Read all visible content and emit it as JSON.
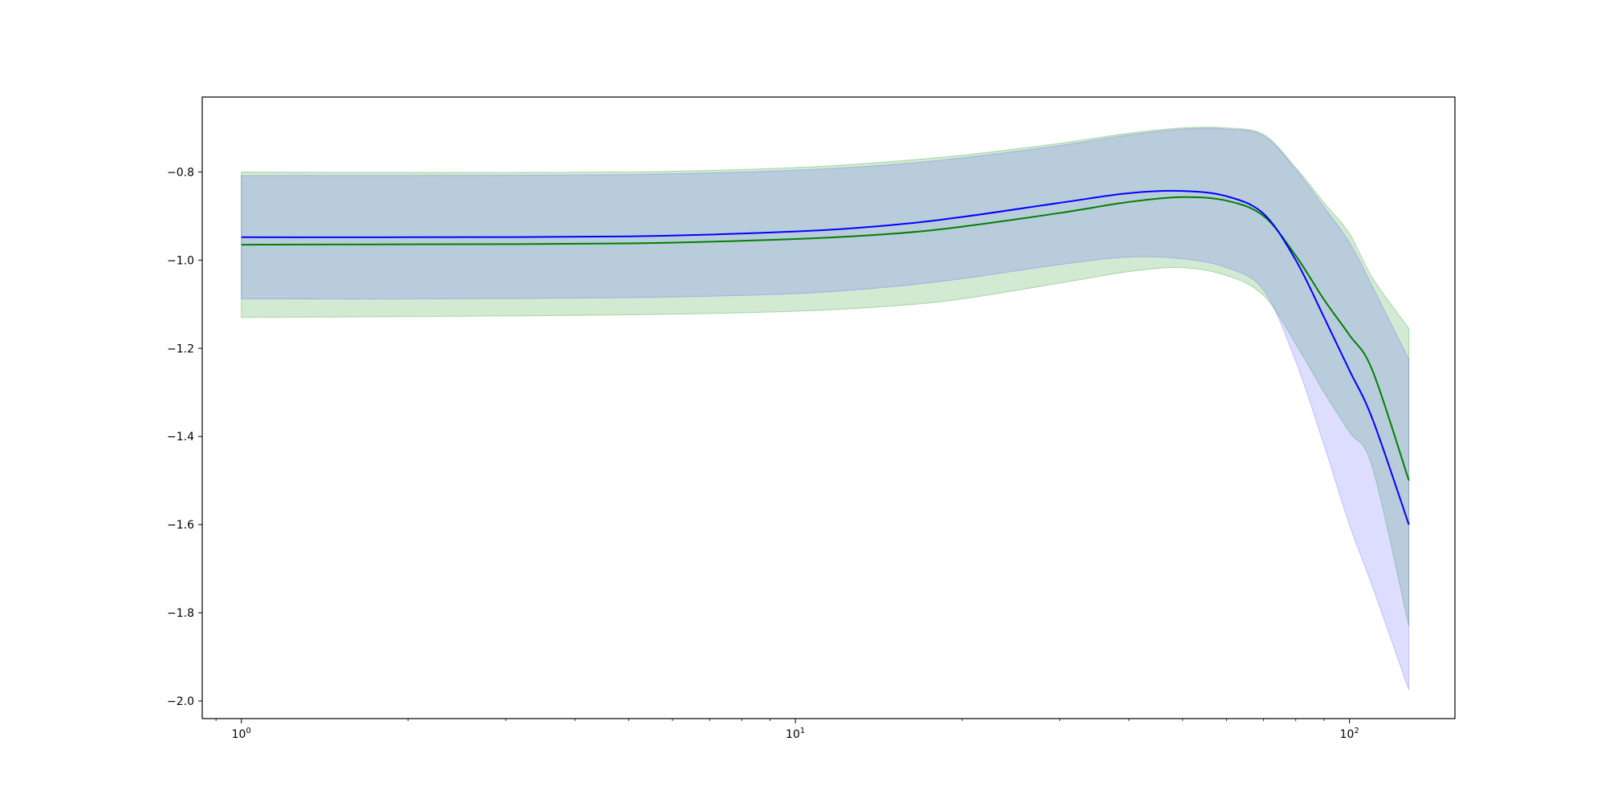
{
  "chart_data": {
    "type": "line",
    "title": "",
    "xlabel": "",
    "ylabel": "",
    "xscale": "log",
    "xlim": [
      0.85,
      155
    ],
    "ylim": [
      -2.04,
      -0.63
    ],
    "grid": false,
    "legend": "none",
    "x_ticks": [
      {
        "value": 1,
        "base": "10",
        "exp": "0"
      },
      {
        "value": 10,
        "base": "10",
        "exp": "1"
      },
      {
        "value": 100,
        "base": "10",
        "exp": "2"
      }
    ],
    "y_ticks": [
      {
        "value": -0.8,
        "label": "−0.8"
      },
      {
        "value": -1.0,
        "label": "−1.0"
      },
      {
        "value": -1.2,
        "label": "−1.2"
      },
      {
        "value": -1.4,
        "label": "−1.4"
      },
      {
        "value": -1.6,
        "label": "−1.6"
      },
      {
        "value": -1.8,
        "label": "−1.8"
      },
      {
        "value": -2.0,
        "label": "−2.0"
      }
    ],
    "x": [
      1,
      2,
      5,
      10,
      15,
      20,
      30,
      40,
      50,
      60,
      70,
      80,
      90,
      100,
      110,
      128
    ],
    "series": [
      {
        "color": "#008000",
        "band_color": "#2ca02c",
        "values": [
          -0.965,
          -0.964,
          -0.962,
          -0.952,
          -0.94,
          -0.924,
          -0.893,
          -0.868,
          -0.857,
          -0.865,
          -0.9,
          -0.99,
          -1.09,
          -1.17,
          -1.25,
          -1.5
        ],
        "upper": [
          -0.8,
          -0.801,
          -0.8,
          -0.79,
          -0.776,
          -0.762,
          -0.735,
          -0.712,
          -0.7,
          -0.7,
          -0.715,
          -0.79,
          -0.87,
          -0.94,
          -1.04,
          -1.155
        ],
        "lower": [
          -1.13,
          -1.128,
          -1.124,
          -1.116,
          -1.104,
          -1.088,
          -1.052,
          -1.026,
          -1.017,
          -1.035,
          -1.08,
          -1.19,
          -1.3,
          -1.39,
          -1.47,
          -1.83
        ]
      },
      {
        "color": "#0000ff",
        "band_color": "#6666ff",
        "values": [
          -0.948,
          -0.948,
          -0.946,
          -0.935,
          -0.92,
          -0.902,
          -0.87,
          -0.848,
          -0.843,
          -0.855,
          -0.895,
          -1.0,
          -1.13,
          -1.25,
          -1.36,
          -1.6
        ],
        "upper": [
          -0.808,
          -0.808,
          -0.806,
          -0.796,
          -0.783,
          -0.768,
          -0.74,
          -0.716,
          -0.703,
          -0.703,
          -0.718,
          -0.795,
          -0.88,
          -0.96,
          -1.06,
          -1.225
        ],
        "lower": [
          -1.088,
          -1.088,
          -1.085,
          -1.076,
          -1.06,
          -1.042,
          -1.01,
          -0.993,
          -0.997,
          -1.017,
          -1.068,
          -1.23,
          -1.42,
          -1.6,
          -1.74,
          -1.975
        ]
      }
    ]
  }
}
